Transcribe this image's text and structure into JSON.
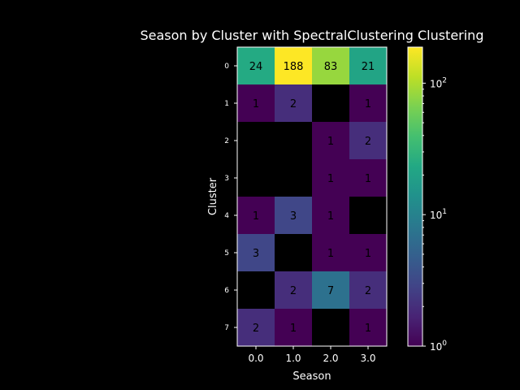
{
  "chart_data": {
    "type": "heatmap",
    "title": "Season by Cluster with SpectralClustering Clustering",
    "xlabel": "Season",
    "ylabel": "Cluster",
    "x_categories": [
      "0.0",
      "1.0",
      "2.0",
      "3.0"
    ],
    "y_categories": [
      "0",
      "1",
      "2",
      "3",
      "4",
      "5",
      "6",
      "7"
    ],
    "values": [
      [
        24,
        188,
        83,
        21
      ],
      [
        1,
        2,
        null,
        1
      ],
      [
        null,
        null,
        1,
        2
      ],
      [
        null,
        null,
        1,
        1
      ],
      [
        1,
        3,
        1,
        null
      ],
      [
        3,
        null,
        1,
        1
      ],
      [
        null,
        2,
        7,
        2
      ],
      [
        2,
        1,
        null,
        1
      ]
    ],
    "color_scale": "log",
    "colormap": "viridis",
    "vmin": 1,
    "vmax": 188,
    "empty_cell_color": "#000000",
    "colorbar": {
      "ticks": [
        1,
        10,
        100
      ],
      "tick_labels": [
        {
          "base": "10",
          "exp": "0"
        },
        {
          "base": "10",
          "exp": "1"
        },
        {
          "base": "10",
          "exp": "2"
        }
      ]
    },
    "background": "#000000",
    "text_color": "#ffffff",
    "annotation_color": "#000000"
  }
}
